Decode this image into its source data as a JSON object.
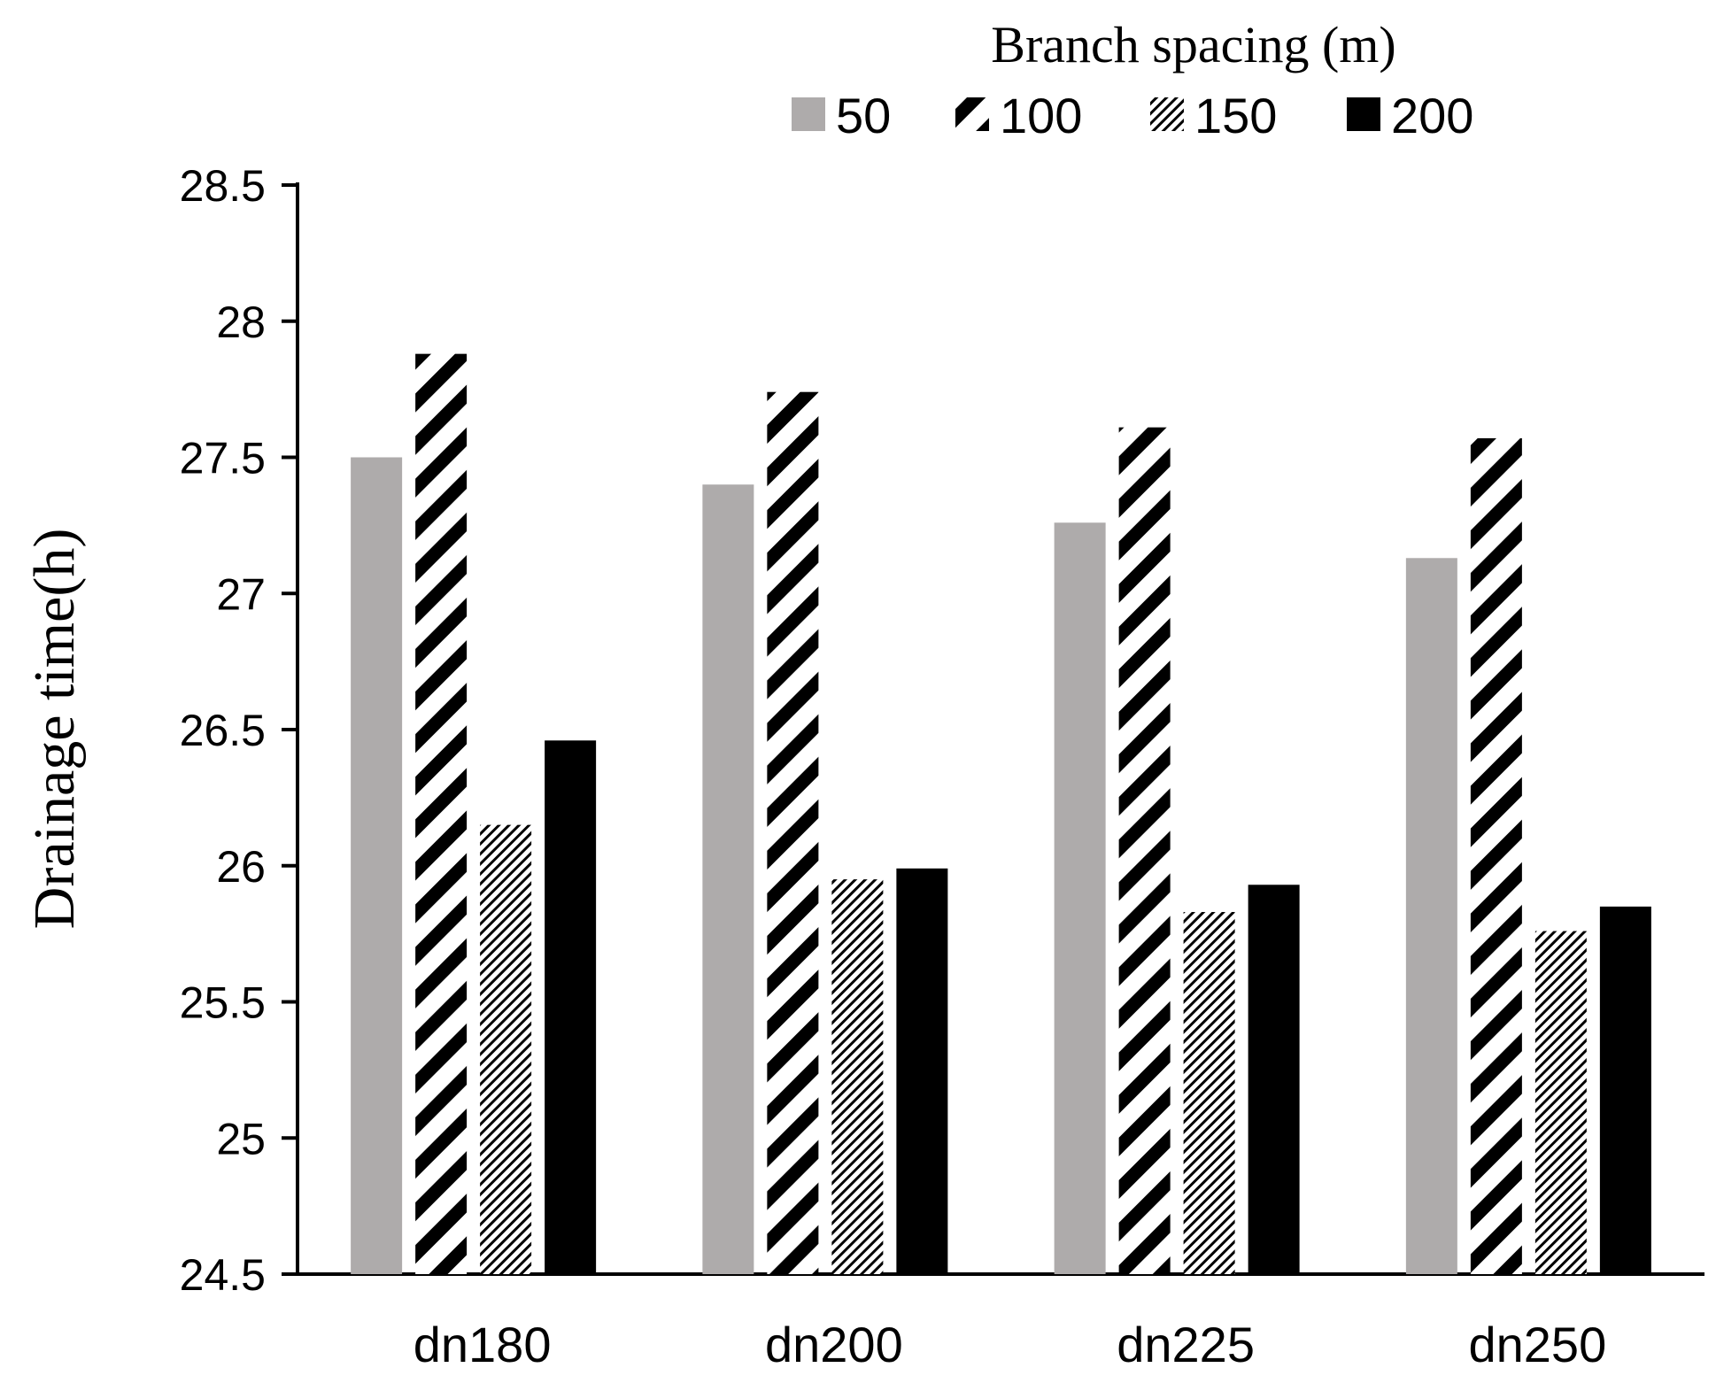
{
  "chart_data": {
    "type": "bar",
    "ylabel": "Drainage time(h)",
    "xlabel": "",
    "legend_title": "Branch spacing (m)",
    "legend_position": "top",
    "grid": false,
    "categories": [
      "dn180",
      "dn200",
      "dn225",
      "dn250"
    ],
    "ylim": [
      24.5,
      28.5
    ],
    "yticks": [
      "24.5",
      "25",
      "25.5",
      "26",
      "26.5",
      "27",
      "27.5",
      "28",
      "28.5"
    ],
    "series": [
      {
        "name": "50",
        "values": [
          27.5,
          27.4,
          27.26,
          27.13
        ],
        "pattern": "solid-gray",
        "color": "#aeabab"
      },
      {
        "name": "100",
        "values": [
          27.88,
          27.74,
          27.61,
          27.57
        ],
        "pattern": "wide-diagonal",
        "color": "#000000"
      },
      {
        "name": "150",
        "values": [
          26.15,
          25.95,
          25.83,
          25.76
        ],
        "pattern": "fine-diagonal",
        "color": "#000000"
      },
      {
        "name": "200",
        "values": [
          26.46,
          25.99,
          25.93,
          25.85
        ],
        "pattern": "solid-black",
        "color": "#000000"
      }
    ]
  }
}
